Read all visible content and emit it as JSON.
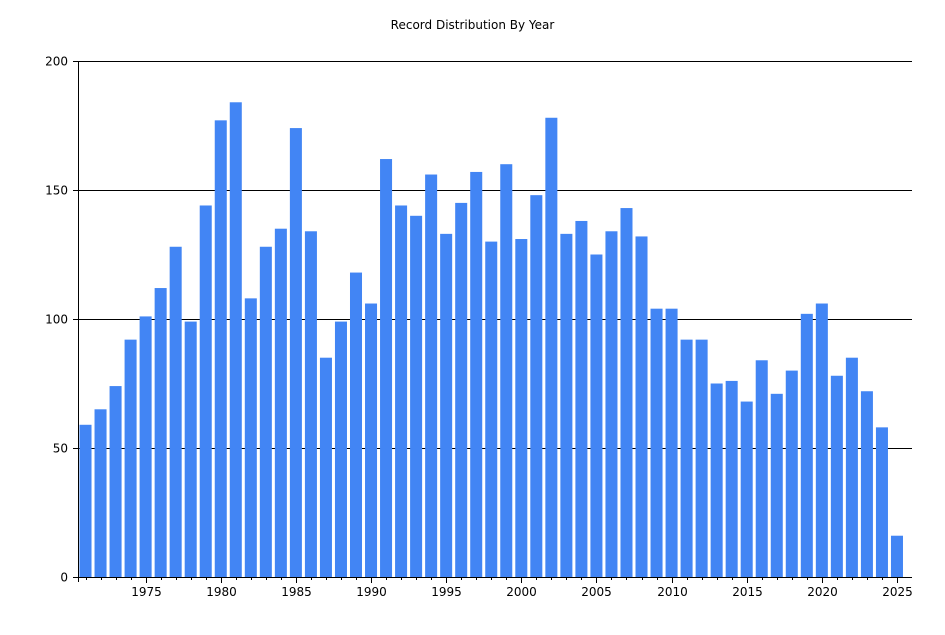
{
  "chart_data": {
    "type": "bar",
    "title": "Record Distribution By Year",
    "xlabel": "",
    "ylabel": "",
    "ylim": [
      0,
      200
    ],
    "yticks": [
      0,
      50,
      100,
      150,
      200
    ],
    "xticks": [
      1975,
      1980,
      1985,
      1990,
      1995,
      2000,
      2005,
      2010,
      2015,
      2020,
      2025
    ],
    "grid": "horizontal",
    "bar_color": "#4285f4",
    "categories": [
      1971,
      1972,
      1973,
      1974,
      1975,
      1976,
      1977,
      1978,
      1979,
      1980,
      1981,
      1982,
      1983,
      1984,
      1985,
      1986,
      1987,
      1988,
      1989,
      1990,
      1991,
      1992,
      1993,
      1994,
      1995,
      1996,
      1997,
      1998,
      1999,
      2000,
      2001,
      2002,
      2003,
      2004,
      2005,
      2006,
      2007,
      2008,
      2009,
      2010,
      2011,
      2012,
      2013,
      2014,
      2015,
      2016,
      2017,
      2018,
      2019,
      2020,
      2021,
      2022,
      2023,
      2024,
      2025
    ],
    "values": [
      59,
      65,
      74,
      92,
      101,
      112,
      128,
      99,
      144,
      177,
      184,
      108,
      128,
      135,
      174,
      134,
      85,
      99,
      118,
      106,
      162,
      144,
      140,
      156,
      133,
      145,
      157,
      130,
      160,
      131,
      148,
      178,
      133,
      138,
      125,
      134,
      143,
      132,
      104,
      104,
      92,
      92,
      75,
      76,
      68,
      84,
      71,
      80,
      102,
      106,
      78,
      85,
      72,
      58,
      16
    ]
  }
}
